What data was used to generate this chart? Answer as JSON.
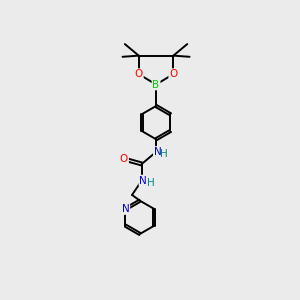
{
  "background_color": "#ebebeb",
  "bond_color": "#000000",
  "atom_colors": {
    "B": "#00cc00",
    "O": "#ff0000",
    "N": "#0000cc",
    "H": "#008888"
  },
  "figsize": [
    3.0,
    3.0
  ],
  "dpi": 100,
  "lw": 1.4,
  "fontsize": 7.5
}
